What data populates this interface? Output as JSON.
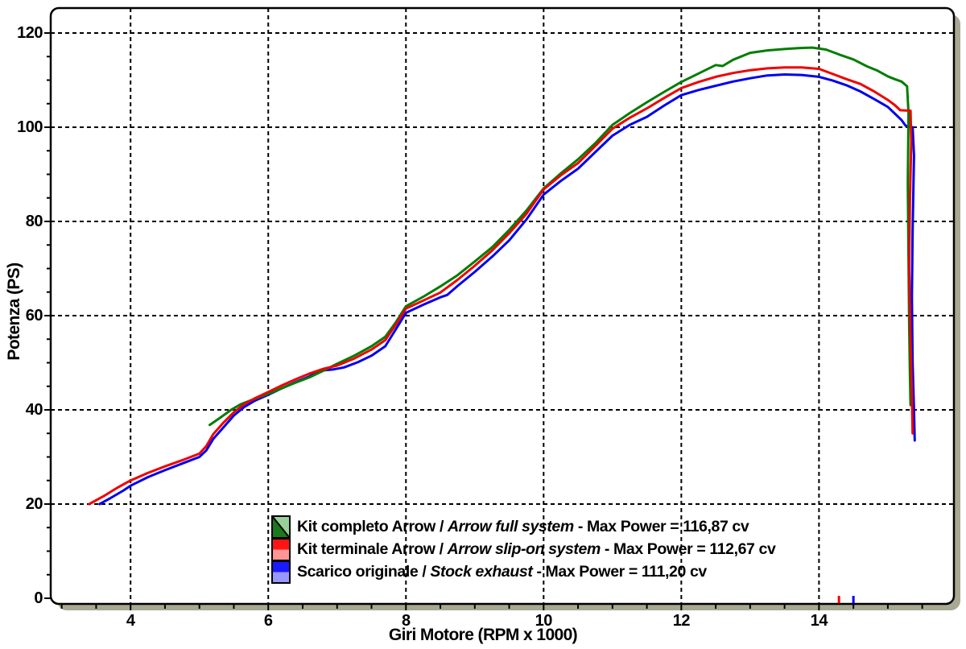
{
  "page": {
    "background": "#ffffff"
  },
  "chart_data": {
    "type": "line",
    "title": "",
    "xlabel": "Giri Motore (RPM x 1000)",
    "ylabel": "Potenza (PS)",
    "xlim": [
      2.84,
      15.96
    ],
    "ylim": [
      -1.2,
      125.3
    ],
    "x_major_ticks": [
      4,
      6,
      8,
      10,
      12,
      14
    ],
    "x_minor_tick_start": 3.0,
    "x_minor_tick_step": 0.5,
    "y_major_ticks": [
      120,
      100,
      80,
      60,
      40,
      20
    ],
    "y_origin_label": "0",
    "y_minor_tick_step": 5,
    "grid": "dashed lines at major ticks only",
    "legend_position": "bottom-center-inside",
    "frame_shadow_color": "#a8a893",
    "grid_color": "#000000",
    "legend": {
      "separator": " / ",
      "entries_note": "italic english name follows separator"
    },
    "series": [
      {
        "id": "stock-exhaust",
        "label_it": "Scarico originale",
        "label_en": "Stock exhaust",
        "max_power_text": "- Max Power = 111,20 cv",
        "max_power_cv": 111.2,
        "color": "#0000ee",
        "swatch": {
          "style": "half-split",
          "dark": "#1a1aff",
          "light": "#9898ff"
        },
        "legend_order": 3,
        "points": [
          [
            3.55,
            20.0
          ],
          [
            3.7,
            21.2
          ],
          [
            3.9,
            22.9
          ],
          [
            4.0,
            23.9
          ],
          [
            4.25,
            25.7
          ],
          [
            4.5,
            27.2
          ],
          [
            4.75,
            28.6
          ],
          [
            5.0,
            30.0
          ],
          [
            5.1,
            31.4
          ],
          [
            5.2,
            33.8
          ],
          [
            5.35,
            36.3
          ],
          [
            5.5,
            38.8
          ],
          [
            5.65,
            40.6
          ],
          [
            5.8,
            41.9
          ],
          [
            6.0,
            43.2
          ],
          [
            6.2,
            44.6
          ],
          [
            6.4,
            45.9
          ],
          [
            6.6,
            47.1
          ],
          [
            6.75,
            48.3
          ],
          [
            6.95,
            48.6
          ],
          [
            7.1,
            49.0
          ],
          [
            7.3,
            50.1
          ],
          [
            7.5,
            51.5
          ],
          [
            7.7,
            53.5
          ],
          [
            7.85,
            57.0
          ],
          [
            8.0,
            60.6
          ],
          [
            8.25,
            62.3
          ],
          [
            8.5,
            63.9
          ],
          [
            8.6,
            64.4
          ],
          [
            8.75,
            66.3
          ],
          [
            9.0,
            69.3
          ],
          [
            9.25,
            72.5
          ],
          [
            9.5,
            76.0
          ],
          [
            9.75,
            80.4
          ],
          [
            10.0,
            85.7
          ],
          [
            10.25,
            88.6
          ],
          [
            10.5,
            91.2
          ],
          [
            10.75,
            94.7
          ],
          [
            11.0,
            98.2
          ],
          [
            11.25,
            100.5
          ],
          [
            11.5,
            102.2
          ],
          [
            11.75,
            104.6
          ],
          [
            12.0,
            106.8
          ],
          [
            12.25,
            107.9
          ],
          [
            12.5,
            108.8
          ],
          [
            12.75,
            109.7
          ],
          [
            13.0,
            110.4
          ],
          [
            13.25,
            111.0
          ],
          [
            13.5,
            111.2
          ],
          [
            13.75,
            111.1
          ],
          [
            14.0,
            110.7
          ],
          [
            14.2,
            109.9
          ],
          [
            14.4,
            108.9
          ],
          [
            14.6,
            107.6
          ],
          [
            14.8,
            106.0
          ],
          [
            15.0,
            104.3
          ],
          [
            15.1,
            102.9
          ],
          [
            15.2,
            101.5
          ],
          [
            15.26,
            100.3
          ],
          [
            15.36,
            100.0
          ],
          [
            15.38,
            94.0
          ],
          [
            15.36,
            78.0
          ],
          [
            15.35,
            64.0
          ],
          [
            15.36,
            50.0
          ],
          [
            15.38,
            40.0
          ],
          [
            15.39,
            33.5
          ]
        ]
      },
      {
        "id": "arrow-full-system",
        "label_it": "Kit completo Arrow",
        "label_en": "Arrow full system",
        "max_power_text": "- Max Power = 116,87 cv",
        "max_power_cv": 116.87,
        "color": "#007d00",
        "swatch": {
          "style": "diagonal-split",
          "dark": "#1a7a1a",
          "light": "#99cf99"
        },
        "legend_order": 1,
        "points": [
          [
            5.15,
            36.8
          ],
          [
            5.3,
            38.3
          ],
          [
            5.45,
            39.9
          ],
          [
            5.6,
            41.2
          ],
          [
            5.8,
            42.3
          ],
          [
            6.0,
            43.4
          ],
          [
            6.2,
            44.6
          ],
          [
            6.4,
            45.8
          ],
          [
            6.6,
            46.9
          ],
          [
            6.8,
            48.3
          ],
          [
            7.0,
            49.8
          ],
          [
            7.25,
            51.5
          ],
          [
            7.5,
            53.5
          ],
          [
            7.7,
            55.5
          ],
          [
            7.85,
            58.5
          ],
          [
            8.0,
            62.0
          ],
          [
            8.25,
            64.0
          ],
          [
            8.5,
            66.2
          ],
          [
            8.75,
            68.6
          ],
          [
            9.0,
            71.5
          ],
          [
            9.25,
            74.5
          ],
          [
            9.5,
            78.2
          ],
          [
            9.75,
            82.3
          ],
          [
            10.0,
            87.0
          ],
          [
            10.25,
            90.2
          ],
          [
            10.5,
            93.2
          ],
          [
            10.75,
            96.6
          ],
          [
            11.0,
            100.5
          ],
          [
            11.25,
            103.0
          ],
          [
            11.5,
            105.3
          ],
          [
            11.75,
            107.5
          ],
          [
            12.0,
            109.6
          ],
          [
            12.25,
            111.4
          ],
          [
            12.5,
            113.2
          ],
          [
            12.6,
            113.0
          ],
          [
            12.75,
            114.3
          ],
          [
            13.0,
            115.8
          ],
          [
            13.25,
            116.3
          ],
          [
            13.5,
            116.6
          ],
          [
            13.7,
            116.8
          ],
          [
            13.9,
            116.9
          ],
          [
            14.1,
            116.5
          ],
          [
            14.3,
            115.4
          ],
          [
            14.5,
            114.4
          ],
          [
            14.7,
            112.9
          ],
          [
            14.85,
            112.0
          ],
          [
            15.0,
            110.8
          ],
          [
            15.1,
            110.2
          ],
          [
            15.2,
            109.7
          ],
          [
            15.28,
            108.7
          ],
          [
            15.3,
            103.0
          ],
          [
            15.29,
            88.0
          ],
          [
            15.3,
            72.0
          ],
          [
            15.31,
            58.0
          ],
          [
            15.32,
            48.0
          ],
          [
            15.33,
            41.0
          ]
        ]
      },
      {
        "id": "arrow-slip-on-system",
        "label_it": "Kit terminale Arrow",
        "label_en": "Arrow slip-on system",
        "max_power_text": "- Max Power = 112,67 cv",
        "max_power_cv": 112.67,
        "color": "#f00000",
        "swatch": {
          "style": "half-split",
          "dark": "#ff1414",
          "light": "#ff9595"
        },
        "legend_order": 2,
        "points": [
          [
            3.4,
            20.0
          ],
          [
            3.6,
            21.6
          ],
          [
            3.8,
            23.4
          ],
          [
            4.0,
            25.0
          ],
          [
            4.25,
            26.6
          ],
          [
            4.5,
            28.0
          ],
          [
            4.75,
            29.3
          ],
          [
            5.0,
            30.7
          ],
          [
            5.1,
            32.3
          ],
          [
            5.2,
            34.8
          ],
          [
            5.35,
            37.3
          ],
          [
            5.5,
            39.5
          ],
          [
            5.65,
            41.2
          ],
          [
            5.8,
            42.4
          ],
          [
            6.0,
            43.8
          ],
          [
            6.2,
            45.2
          ],
          [
            6.4,
            46.5
          ],
          [
            6.6,
            47.7
          ],
          [
            6.8,
            48.7
          ],
          [
            7.0,
            49.4
          ],
          [
            7.25,
            50.9
          ],
          [
            7.5,
            52.8
          ],
          [
            7.7,
            54.8
          ],
          [
            7.85,
            58.0
          ],
          [
            8.0,
            61.5
          ],
          [
            8.25,
            63.2
          ],
          [
            8.5,
            64.9
          ],
          [
            8.75,
            67.6
          ],
          [
            9.0,
            70.6
          ],
          [
            9.25,
            73.8
          ],
          [
            9.5,
            77.5
          ],
          [
            9.75,
            81.6
          ],
          [
            10.0,
            86.8
          ],
          [
            10.25,
            89.8
          ],
          [
            10.5,
            92.4
          ],
          [
            10.75,
            96.0
          ],
          [
            11.0,
            99.7
          ],
          [
            11.25,
            102.0
          ],
          [
            11.5,
            104.0
          ],
          [
            11.75,
            106.2
          ],
          [
            12.0,
            108.3
          ],
          [
            12.25,
            109.6
          ],
          [
            12.5,
            110.7
          ],
          [
            12.75,
            111.5
          ],
          [
            13.0,
            112.1
          ],
          [
            13.25,
            112.5
          ],
          [
            13.5,
            112.7
          ],
          [
            13.75,
            112.7
          ],
          [
            14.0,
            112.4
          ],
          [
            14.2,
            111.3
          ],
          [
            14.4,
            110.2
          ],
          [
            14.6,
            109.2
          ],
          [
            14.8,
            107.6
          ],
          [
            15.0,
            105.8
          ],
          [
            15.1,
            104.7
          ],
          [
            15.18,
            103.6
          ],
          [
            15.33,
            103.5
          ],
          [
            15.34,
            97.0
          ],
          [
            15.32,
            84.0
          ],
          [
            15.31,
            70.0
          ],
          [
            15.33,
            55.0
          ],
          [
            15.35,
            43.0
          ],
          [
            15.36,
            35.0
          ]
        ]
      }
    ],
    "axis_markers": [
      {
        "color": "#ff0000",
        "rpm": 14.29
      },
      {
        "color": "#0000ff",
        "rpm": 14.5
      }
    ]
  }
}
